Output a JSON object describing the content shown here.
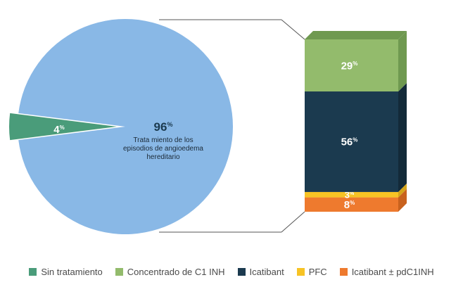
{
  "chart_data": [
    {
      "type": "pie",
      "slices": [
        {
          "label": "Sin tratamiento",
          "value": 4,
          "value_label": "4",
          "suffix": "%",
          "color": "#4a9c7a"
        },
        {
          "label": "Tratamiento de los episodios de angioedema hereditario",
          "value": 96,
          "value_label": "96",
          "suffix": "%",
          "color": "#89b8e6"
        }
      ],
      "center_text": [
        "Trata miento de los",
        "episodios de angioedema",
        "hereditario"
      ]
    },
    {
      "type": "bar",
      "stacked": true,
      "series": [
        {
          "name": "Icatibant ± pdC1INH",
          "value": 8,
          "value_label": "8",
          "suffix": "%",
          "color": "#ee7a2e",
          "side_color": "#c8621e",
          "label_color": "#ffffff"
        },
        {
          "name": "PFC",
          "value": 3,
          "value_label": "3",
          "suffix": "%",
          "color": "#f7c325",
          "side_color": "#d4a41a",
          "label_color": "#ffffff"
        },
        {
          "name": "Icatibant",
          "value": 56,
          "value_label": "56",
          "suffix": "%",
          "color": "#1b3a4f",
          "side_color": "#132a39",
          "label_color": "#ffffff"
        },
        {
          "name": "Concentrado de C1 INH",
          "value": 29,
          "value_label": "29",
          "suffix": "%",
          "color": "#93bb6c",
          "side_color": "#6f9950",
          "label_color": "#ffffff"
        }
      ]
    }
  ],
  "legend": [
    {
      "label": "Sin tratamiento",
      "color": "#4a9c7a"
    },
    {
      "label": "Concentrado de C1 INH",
      "color": "#93bb6c"
    },
    {
      "label": "Icatibant",
      "color": "#1b3a4f"
    },
    {
      "label": "PFC",
      "color": "#f7c325"
    },
    {
      "label": "Icatibant ± pdC1INH",
      "color": "#ee7a2e"
    }
  ]
}
